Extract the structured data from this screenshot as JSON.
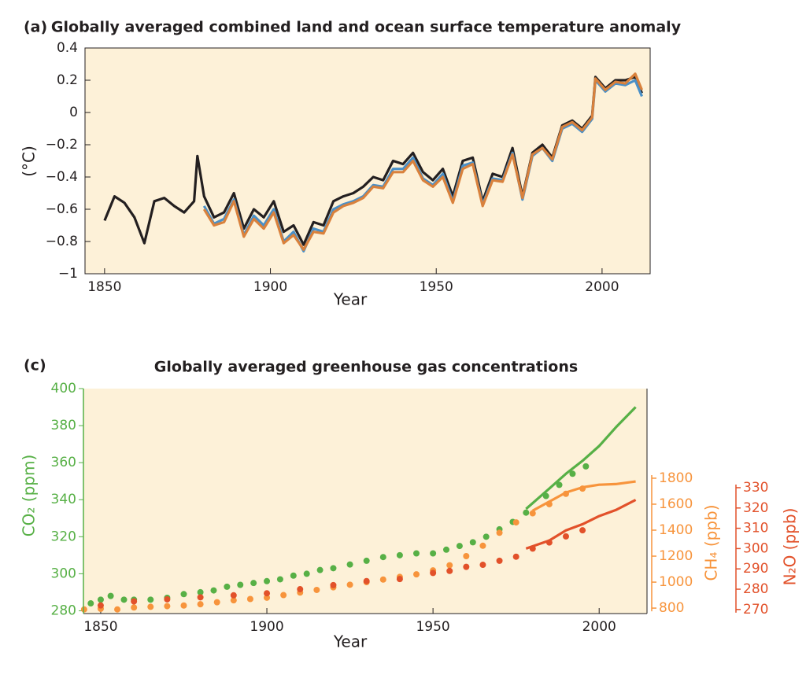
{
  "chart_data": [
    {
      "type": "line",
      "panel": "(a)",
      "title": "Globally averaged combined land and ocean surface temperature anomaly",
      "xlabel": "Year",
      "ylabel": "(°C)",
      "background": "#fdf1d8",
      "xlim": [
        1844.1,
        2014.5
      ],
      "xticks": [
        1850,
        1900,
        1950,
        2000
      ],
      "ylim": [
        -1,
        0.4
      ],
      "yticks": [
        0.4,
        0.2,
        0,
        {
          "value": -0.2,
          "label": "−0.2"
        },
        {
          "value": -0.4,
          "label": "−0.4"
        },
        {
          "value": -0.6,
          "label": "−0.6"
        },
        {
          "value": -0.8,
          "label": "−0.8"
        },
        {
          "value": -1,
          "label": "−1"
        }
      ],
      "x": [
        1850,
        1853,
        1856,
        1859,
        1862,
        1865,
        1868,
        1871,
        1874,
        1877,
        1878,
        1880,
        1883,
        1886,
        1889,
        1892,
        1895,
        1898,
        1901,
        1904,
        1907,
        1910,
        1913,
        1916,
        1919,
        1922,
        1925,
        1928,
        1931,
        1934,
        1937,
        1940,
        1943,
        1946,
        1949,
        1952,
        1955,
        1958,
        1961,
        1964,
        1967,
        1970,
        1973,
        1976,
        1979,
        1982,
        1985,
        1988,
        1991,
        1994,
        1997,
        1998,
        2001,
        2004,
        2007,
        2010,
        2012
      ],
      "series": [
        {
          "color": "#231f20",
          "values": [
            -0.67,
            -0.52,
            -0.56,
            -0.65,
            -0.81,
            -0.55,
            -0.53,
            -0.58,
            -0.62,
            -0.55,
            -0.27,
            -0.52,
            -0.65,
            -0.62,
            -0.5,
            -0.72,
            -0.6,
            -0.65,
            -0.55,
            -0.74,
            -0.7,
            -0.82,
            -0.68,
            -0.7,
            -0.55,
            -0.52,
            -0.5,
            -0.46,
            -0.4,
            -0.42,
            -0.3,
            -0.32,
            -0.25,
            -0.37,
            -0.42,
            -0.35,
            -0.52,
            -0.3,
            -0.28,
            -0.55,
            -0.38,
            -0.4,
            -0.22,
            -0.52,
            -0.25,
            -0.2,
            -0.28,
            -0.08,
            -0.05,
            -0.1,
            -0.02,
            0.22,
            0.15,
            0.2,
            0.2,
            0.22,
            0.12
          ]
        },
        {
          "color": "#4a90c8",
          "values": [
            null,
            null,
            null,
            null,
            null,
            null,
            null,
            null,
            null,
            null,
            null,
            -0.58,
            -0.69,
            -0.66,
            -0.54,
            -0.76,
            -0.64,
            -0.7,
            -0.6,
            -0.8,
            -0.74,
            -0.86,
            -0.72,
            -0.74,
            -0.6,
            -0.57,
            -0.55,
            -0.52,
            -0.45,
            -0.46,
            -0.35,
            -0.35,
            -0.28,
            -0.41,
            -0.45,
            -0.38,
            -0.55,
            -0.33,
            -0.31,
            -0.57,
            -0.41,
            -0.42,
            -0.25,
            -0.54,
            -0.27,
            -0.22,
            -0.3,
            -0.1,
            -0.07,
            -0.12,
            -0.04,
            0.2,
            0.13,
            0.18,
            0.17,
            0.2,
            0.1
          ]
        },
        {
          "color": "#d9813c",
          "values": [
            null,
            null,
            null,
            null,
            null,
            null,
            null,
            null,
            null,
            null,
            null,
            -0.6,
            -0.7,
            -0.68,
            -0.55,
            -0.77,
            -0.66,
            -0.72,
            -0.62,
            -0.81,
            -0.76,
            -0.85,
            -0.74,
            -0.75,
            -0.62,
            -0.58,
            -0.56,
            -0.53,
            -0.46,
            -0.47,
            -0.37,
            -0.37,
            -0.3,
            -0.42,
            -0.46,
            -0.4,
            -0.56,
            -0.35,
            -0.32,
            -0.58,
            -0.42,
            -0.43,
            -0.26,
            -0.53,
            -0.26,
            -0.22,
            -0.29,
            -0.09,
            -0.06,
            -0.11,
            -0.03,
            0.21,
            0.14,
            0.19,
            0.18,
            0.24,
            0.14
          ]
        }
      ]
    },
    {
      "type": "multi-axis",
      "panel": "(c)",
      "title": "Globally averaged greenhouse gas concentrations",
      "xlabel": "Year",
      "ylabel": "CO₂ (ppm)",
      "y2label": "CH₄ (ppb)",
      "y3label": "N₂O (ppb)",
      "background": "#fdf1d8",
      "xlim": [
        1844.8,
        2014.4
      ],
      "xticks": [
        1850,
        1900,
        1950,
        2000
      ],
      "ylim": [
        278.5,
        400
      ],
      "yticks": [
        280,
        300,
        320,
        340,
        360,
        380,
        400
      ],
      "ycolor": "#57b046",
      "y2lim": [
        758,
        2490
      ],
      "y2ticks": [
        800,
        1000,
        1200,
        1400,
        1600,
        1800
      ],
      "y2color": "#f7943c",
      "y3lim": [
        268,
        378.8
      ],
      "y3ticks": [
        270,
        280,
        290,
        300,
        310,
        320,
        330
      ],
      "y3color": "#e2512a",
      "series": [
        {
          "style": "dots",
          "axis": "y",
          "color": "#57b046",
          "x": [
            1847,
            1850,
            1853,
            1857,
            1860,
            1865,
            1870,
            1875,
            1880,
            1884,
            1888,
            1892,
            1896,
            1900,
            1904,
            1908,
            1912,
            1916,
            1920,
            1925,
            1930,
            1935,
            1940,
            1945,
            1950,
            1954,
            1958,
            1962,
            1966,
            1970,
            1974,
            1978,
            1984,
            1988,
            1992,
            1996
          ],
          "values": [
            284,
            286,
            288,
            286,
            286,
            286,
            287,
            289,
            290,
            291,
            293,
            294,
            295,
            296,
            297,
            299,
            300,
            302,
            303,
            305,
            307,
            309,
            310,
            311,
            311,
            313,
            315,
            317,
            320,
            324,
            328,
            333,
            342,
            348,
            354,
            358
          ]
        },
        {
          "style": "line",
          "axis": "y",
          "color": "#57b046",
          "x": [
            1978,
            1985,
            1990,
            1995,
            2000,
            2005,
            2011
          ],
          "values": [
            335,
            346,
            354,
            361,
            369,
            379,
            390
          ]
        },
        {
          "style": "dots",
          "axis": "y2",
          "color": "#f7943c",
          "x": [
            1845,
            1850,
            1855,
            1860,
            1865,
            1870,
            1875,
            1880,
            1885,
            1890,
            1895,
            1900,
            1905,
            1910,
            1915,
            1920,
            1925,
            1930,
            1935,
            1940,
            1945,
            1950,
            1955,
            1960,
            1965,
            1970,
            1975,
            1980,
            1985,
            1990,
            1995
          ],
          "values": [
            790,
            795,
            790,
            805,
            810,
            815,
            820,
            830,
            845,
            860,
            870,
            880,
            900,
            920,
            940,
            960,
            980,
            1000,
            1020,
            1040,
            1060,
            1090,
            1130,
            1200,
            1280,
            1380,
            1460,
            1530,
            1600,
            1680,
            1720
          ]
        },
        {
          "style": "line",
          "axis": "y2",
          "color": "#f7943c",
          "x": [
            1980,
            1985,
            1990,
            1995,
            2000,
            2005,
            2011
          ],
          "values": [
            1550,
            1620,
            1690,
            1730,
            1750,
            1755,
            1775
          ]
        },
        {
          "style": "dots",
          "axis": "y3",
          "color": "#e2512a",
          "x": [
            1850,
            1860,
            1870,
            1880,
            1890,
            1900,
            1910,
            1920,
            1930,
            1940,
            1950,
            1955,
            1960,
            1965,
            1970,
            1975,
            1980,
            1985,
            1990,
            1995
          ],
          "values": [
            272,
            274,
            275,
            276,
            277,
            278,
            280,
            282,
            284,
            285,
            288,
            289,
            291,
            292,
            294,
            296,
            300,
            303,
            306,
            309
          ]
        },
        {
          "style": "line",
          "axis": "y3",
          "color": "#e2512a",
          "x": [
            1978,
            1985,
            1990,
            1995,
            2000,
            2005,
            2011
          ],
          "values": [
            300,
            304,
            309,
            312,
            316,
            319,
            324
          ]
        }
      ]
    }
  ]
}
